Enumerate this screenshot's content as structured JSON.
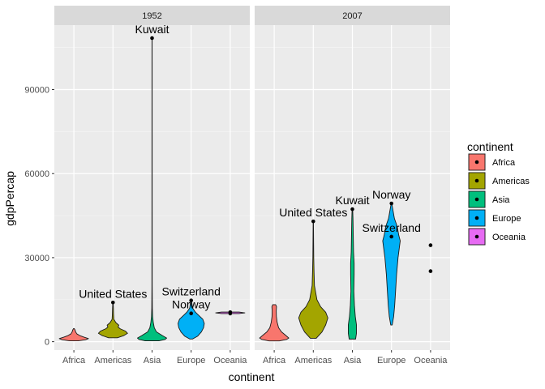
{
  "chart_data": {
    "type": "violin",
    "xlabel": "continent",
    "ylabel": "gdpPercap",
    "categories": [
      "Africa",
      "Americas",
      "Asia",
      "Europe",
      "Oceania"
    ],
    "facets": [
      "1952",
      "2007"
    ],
    "ylim": [
      -3000,
      113000
    ],
    "y_ticks": [
      0,
      30000,
      60000,
      90000
    ],
    "y_tick_labels": [
      "0",
      "30000",
      "60000",
      "90000"
    ],
    "grid": true,
    "legend": {
      "title": "continent",
      "position": "right",
      "entries": [
        "Africa",
        "Americas",
        "Asia",
        "Europe",
        "Oceania"
      ],
      "colors": [
        "#F8766D",
        "#A3A500",
        "#00BF7D",
        "#00B0F6",
        "#E76BF3"
      ]
    },
    "panels": [
      {
        "facet": "1952",
        "series": [
          {
            "category": "Africa",
            "min": 300,
            "max": 4700,
            "profile": [
              [
                300,
                0.3
              ],
              [
                700,
                0.8
              ],
              [
                1100,
                1.0
              ],
              [
                1600,
                0.7
              ],
              [
                2200,
                0.4
              ],
              [
                2800,
                0.2
              ],
              [
                3500,
                0.12
              ],
              [
                4200,
                0.08
              ],
              [
                4700,
                0.02
              ]
            ]
          },
          {
            "category": "Americas",
            "min": 1400,
            "max": 13990,
            "profile": [
              [
                1400,
                0.3
              ],
              [
                2200,
                0.75
              ],
              [
                3000,
                1.0
              ],
              [
                3800,
                0.85
              ],
              [
                4600,
                0.5
              ],
              [
                5200,
                0.35
              ],
              [
                5900,
                0.4
              ],
              [
                6800,
                0.2
              ],
              [
                8000,
                0.06
              ],
              [
                10000,
                0.04
              ],
              [
                12000,
                0.03
              ],
              [
                13990,
                0.01
              ]
            ]
          },
          {
            "category": "Asia",
            "min": 330,
            "max": 108382,
            "profile": [
              [
                330,
                0.5
              ],
              [
                800,
                0.9
              ],
              [
                1300,
                1.0
              ],
              [
                2200,
                0.7
              ],
              [
                3500,
                0.3
              ],
              [
                5000,
                0.15
              ],
              [
                7000,
                0.08
              ],
              [
                9000,
                0.04
              ],
              [
                12000,
                0.02
              ],
              [
                20000,
                0.01
              ],
              [
                108382,
                0.005
              ]
            ]
          },
          {
            "category": "Europe",
            "min": 973,
            "max": 14734,
            "profile": [
              [
                973,
                0.1
              ],
              [
                2000,
                0.45
              ],
              [
                3500,
                0.7
              ],
              [
                5000,
                0.85
              ],
              [
                6500,
                0.9
              ],
              [
                8000,
                0.8
              ],
              [
                9500,
                0.5
              ],
              [
                10500,
                0.3
              ],
              [
                12000,
                0.1
              ],
              [
                14734,
                0.02
              ]
            ]
          },
          {
            "category": "Oceania",
            "min": 10040,
            "max": 10557,
            "profile": [
              [
                10040,
                0.6
              ],
              [
                10300,
                1.0
              ],
              [
                10557,
                0.6
              ]
            ]
          }
        ],
        "points": [
          {
            "category": "Americas",
            "value": 13990
          },
          {
            "category": "Asia",
            "value": 108382
          },
          {
            "category": "Europe",
            "value": 14734
          },
          {
            "category": "Europe",
            "value": 10095
          },
          {
            "category": "Oceania",
            "value": 10040
          },
          {
            "category": "Oceania",
            "value": 10557
          }
        ],
        "labels": [
          {
            "text": "United States",
            "category": "Americas",
            "value": 13990
          },
          {
            "text": "Kuwait",
            "category": "Asia",
            "value": 108382
          },
          {
            "text": "Switzerland",
            "category": "Europe",
            "value": 14734
          },
          {
            "text": "Norway",
            "category": "Europe",
            "value": 10095
          }
        ]
      },
      {
        "facet": "2007",
        "series": [
          {
            "category": "Africa",
            "min": 278,
            "max": 13206,
            "profile": [
              [
                278,
                0.35
              ],
              [
                800,
                0.85
              ],
              [
                1300,
                1.0
              ],
              [
                2200,
                0.8
              ],
              [
                3500,
                0.5
              ],
              [
                5000,
                0.3
              ],
              [
                7000,
                0.2
              ],
              [
                9000,
                0.15
              ],
              [
                11000,
                0.14
              ],
              [
                12500,
                0.16
              ],
              [
                13206,
                0.1
              ]
            ]
          },
          {
            "category": "Americas",
            "min": 1202,
            "max": 42951,
            "profile": [
              [
                1202,
                0.2
              ],
              [
                3500,
                0.6
              ],
              [
                6000,
                0.85
              ],
              [
                8500,
                1.0
              ],
              [
                10500,
                0.85
              ],
              [
                12500,
                0.5
              ],
              [
                15000,
                0.25
              ],
              [
                20000,
                0.08
              ],
              [
                25000,
                0.05
              ],
              [
                30000,
                0.03
              ],
              [
                36000,
                0.02
              ],
              [
                42951,
                0.01
              ]
            ]
          },
          {
            "category": "Asia",
            "min": 944,
            "max": 47307,
            "profile": [
              [
                944,
                0.22
              ],
              [
                3000,
                0.28
              ],
              [
                6000,
                0.28
              ],
              [
                9000,
                0.2
              ],
              [
                13000,
                0.14
              ],
              [
                18000,
                0.1
              ],
              [
                24000,
                0.12
              ],
              [
                28000,
                0.12
              ],
              [
                32000,
                0.08
              ],
              [
                38000,
                0.06
              ],
              [
                44000,
                0.04
              ],
              [
                47307,
                0.02
              ]
            ]
          },
          {
            "category": "Europe",
            "min": 5937,
            "max": 49357,
            "profile": [
              [
                5937,
                0.05
              ],
              [
                9000,
                0.15
              ],
              [
                13000,
                0.22
              ],
              [
                18000,
                0.28
              ],
              [
                24000,
                0.35
              ],
              [
                30000,
                0.45
              ],
              [
                34000,
                0.55
              ],
              [
                36000,
                0.6
              ],
              [
                38000,
                0.5
              ],
              [
                41000,
                0.4
              ],
              [
                44000,
                0.2
              ],
              [
                47000,
                0.1
              ],
              [
                49357,
                0.02
              ]
            ]
          }
        ],
        "points": [
          {
            "category": "Americas",
            "value": 42951
          },
          {
            "category": "Asia",
            "value": 47307
          },
          {
            "category": "Europe",
            "value": 49357
          },
          {
            "category": "Europe",
            "value": 37506
          },
          {
            "category": "Oceania",
            "value": 34435
          },
          {
            "category": "Oceania",
            "value": 25185
          }
        ],
        "labels": [
          {
            "text": "United States",
            "category": "Americas",
            "value": 42951
          },
          {
            "text": "Kuwait",
            "category": "Asia",
            "value": 47307
          },
          {
            "text": "Norway",
            "category": "Europe",
            "value": 49357
          },
          {
            "text": "Switzerland",
            "category": "Europe",
            "value": 37506
          }
        ]
      }
    ]
  }
}
